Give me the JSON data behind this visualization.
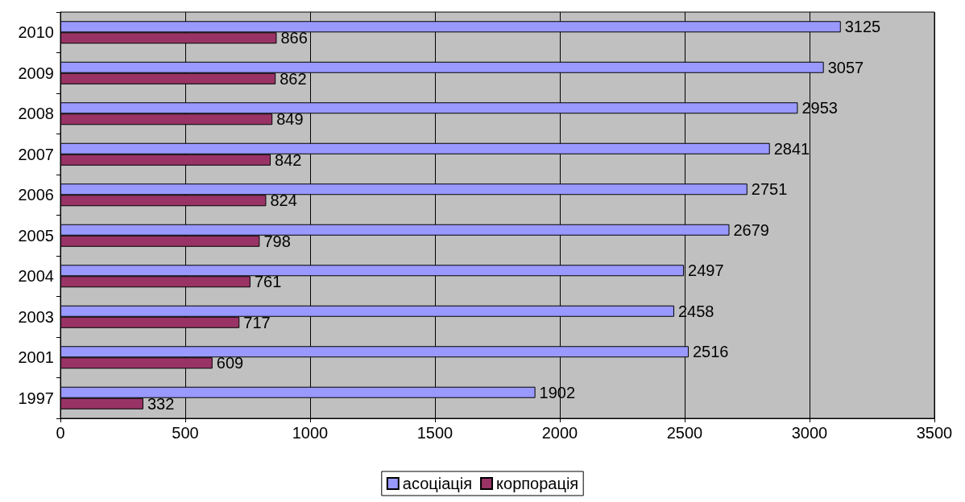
{
  "chart_data": {
    "type": "bar",
    "orientation": "horizontal",
    "categories": [
      "2010",
      "2009",
      "2008",
      "2007",
      "2006",
      "2005",
      "2004",
      "2003",
      "2001",
      "1997"
    ],
    "series": [
      {
        "name": "асоціація",
        "color": "#9999ff",
        "values": [
          3125,
          3057,
          2953,
          2841,
          2751,
          2679,
          2497,
          2458,
          2516,
          1902
        ]
      },
      {
        "name": "корпорація",
        "color": "#993366",
        "values": [
          866,
          862,
          849,
          842,
          824,
          798,
          761,
          717,
          609,
          332
        ]
      }
    ],
    "xlim": [
      0,
      3500
    ],
    "xticks": [
      0,
      500,
      1000,
      1500,
      2000,
      2500,
      3000,
      3500
    ],
    "grid": "x",
    "legend": "bottom",
    "data_labels": true
  }
}
